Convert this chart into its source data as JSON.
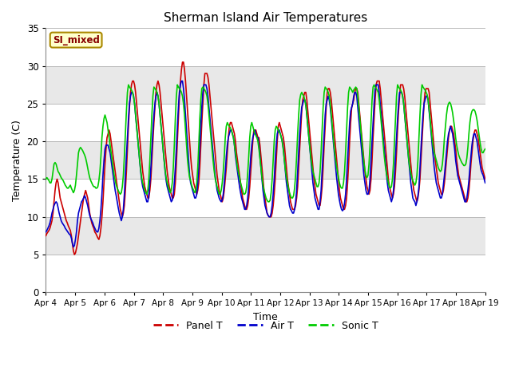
{
  "title": "Sherman Island Air Temperatures",
  "xlabel": "Time",
  "ylabel": "Temperature (C)",
  "ylim": [
    0,
    35
  ],
  "yticks": [
    0,
    5,
    10,
    15,
    20,
    25,
    30,
    35
  ],
  "date_labels": [
    "Apr 4",
    "Apr 5",
    "Apr 6",
    "Apr 7",
    "Apr 8",
    "Apr 9",
    "Apr 10",
    "Apr 11",
    "Apr 12",
    "Apr 13",
    "Apr 14",
    "Apr 15",
    "Apr 16",
    "Apr 17",
    "Apr 18",
    "Apr 19"
  ],
  "site_label": "SI_mixed",
  "panel_color": "#cc0000",
  "air_color": "#0000cc",
  "sonic_color": "#00cc00",
  "bg_color": "#d8d8d8",
  "band_color_light": "#e8e8e8",
  "band_color_dark": "#d0d0d0",
  "legend_entries": [
    "Panel T",
    "Air T",
    "Sonic T"
  ],
  "panel_T": [
    7.5,
    7.8,
    8.0,
    8.2,
    8.5,
    9.0,
    9.5,
    10.5,
    12.0,
    13.5,
    14.5,
    15.0,
    14.5,
    13.5,
    12.5,
    12.0,
    11.5,
    11.0,
    10.5,
    10.0,
    9.5,
    9.2,
    8.8,
    8.5,
    8.2,
    7.5,
    6.5,
    5.5,
    5.0,
    5.2,
    5.8,
    6.5,
    7.5,
    8.5,
    9.5,
    10.5,
    11.5,
    12.5,
    13.0,
    13.5,
    13.0,
    12.5,
    11.5,
    10.5,
    9.8,
    9.2,
    8.8,
    8.5,
    8.0,
    7.8,
    7.5,
    7.2,
    7.0,
    7.5,
    8.5,
    10.0,
    12.0,
    14.5,
    17.0,
    19.0,
    20.5,
    21.0,
    21.5,
    21.0,
    20.0,
    19.0,
    18.0,
    17.0,
    16.0,
    15.0,
    14.0,
    13.0,
    12.0,
    11.0,
    10.5,
    10.0,
    10.5,
    11.5,
    13.5,
    16.0,
    19.0,
    22.0,
    24.5,
    26.5,
    27.5,
    28.0,
    28.0,
    27.5,
    26.5,
    25.0,
    23.5,
    22.0,
    20.5,
    19.0,
    17.5,
    16.0,
    15.0,
    14.0,
    13.5,
    13.0,
    12.5,
    12.5,
    13.5,
    15.0,
    17.5,
    20.0,
    22.5,
    24.5,
    26.5,
    27.5,
    28.0,
    27.5,
    26.5,
    25.0,
    23.5,
    22.0,
    20.5,
    19.0,
    17.5,
    16.0,
    15.0,
    14.0,
    13.5,
    13.0,
    12.5,
    12.5,
    13.0,
    14.5,
    17.0,
    20.0,
    23.0,
    26.0,
    28.0,
    29.5,
    30.5,
    30.5,
    29.5,
    28.0,
    26.0,
    24.0,
    22.0,
    20.0,
    18.0,
    16.5,
    15.5,
    14.5,
    14.0,
    13.5,
    13.0,
    13.5,
    14.5,
    16.5,
    19.5,
    22.5,
    25.0,
    27.5,
    29.0,
    29.0,
    29.0,
    28.5,
    27.5,
    26.0,
    24.5,
    23.0,
    21.5,
    20.0,
    18.5,
    17.0,
    15.5,
    14.5,
    13.5,
    13.0,
    12.5,
    12.0,
    12.5,
    13.5,
    15.0,
    16.5,
    18.5,
    20.5,
    22.0,
    22.5,
    22.5,
    22.0,
    21.5,
    21.0,
    20.0,
    18.5,
    17.5,
    16.5,
    15.5,
    14.5,
    13.5,
    12.5,
    12.0,
    11.5,
    11.0,
    11.0,
    11.5,
    12.5,
    14.0,
    16.0,
    18.0,
    20.0,
    21.5,
    21.5,
    21.5,
    21.0,
    20.5,
    20.5,
    19.5,
    18.0,
    16.5,
    15.0,
    13.5,
    12.5,
    11.5,
    10.5,
    10.2,
    10.0,
    10.0,
    10.0,
    10.5,
    11.5,
    13.0,
    15.0,
    17.5,
    20.0,
    22.0,
    22.5,
    22.0,
    21.5,
    21.0,
    20.5,
    19.5,
    18.0,
    16.5,
    15.0,
    14.0,
    13.0,
    12.0,
    11.5,
    11.0,
    11.0,
    11.0,
    11.5,
    12.5,
    14.0,
    16.5,
    19.0,
    21.5,
    24.0,
    25.5,
    26.0,
    26.5,
    26.5,
    25.5,
    24.0,
    22.5,
    21.0,
    19.5,
    18.0,
    16.5,
    15.0,
    14.0,
    13.0,
    12.5,
    12.0,
    11.5,
    11.5,
    12.5,
    14.0,
    16.5,
    19.5,
    22.0,
    24.5,
    26.5,
    27.0,
    27.0,
    26.5,
    25.5,
    24.0,
    22.5,
    21.0,
    19.5,
    18.0,
    16.5,
    15.0,
    13.5,
    12.5,
    12.0,
    11.5,
    11.0,
    11.0,
    11.5,
    12.5,
    14.5,
    17.0,
    20.0,
    22.5,
    24.5,
    25.0,
    25.5,
    26.5,
    27.0,
    27.0,
    26.5,
    25.0,
    23.5,
    22.0,
    20.5,
    19.0,
    17.5,
    16.0,
    15.0,
    14.0,
    13.5,
    13.0,
    13.5,
    15.0,
    17.5,
    20.5,
    23.0,
    25.5,
    27.5,
    28.0,
    28.0,
    28.0,
    27.0,
    25.5,
    24.0,
    22.5,
    21.0,
    19.5,
    18.0,
    16.5,
    15.0,
    14.0,
    13.5,
    13.0,
    12.5,
    13.0,
    14.0,
    16.0,
    18.5,
    21.5,
    24.0,
    26.0,
    27.5,
    27.5,
    27.5,
    27.0,
    26.0,
    24.5,
    23.0,
    21.5,
    20.0,
    18.5,
    17.0,
    15.5,
    14.5,
    13.5,
    13.0,
    12.5,
    12.0,
    12.5,
    13.5,
    15.0,
    17.5,
    20.0,
    22.5,
    25.0,
    26.5,
    27.0,
    27.0,
    27.0,
    26.5,
    25.0,
    23.5,
    22.0,
    20.5,
    19.0,
    17.5,
    16.5,
    15.5,
    14.5,
    14.0,
    13.5,
    13.0,
    13.0,
    13.5,
    14.5,
    16.0,
    17.5,
    19.0,
    20.5,
    21.5,
    22.0,
    22.0,
    21.5,
    21.0,
    20.0,
    19.0,
    17.5,
    16.5,
    15.5,
    15.0,
    14.5,
    14.0,
    13.5,
    13.0,
    12.5,
    12.0,
    12.0,
    12.5,
    13.5,
    15.0,
    17.0,
    18.5,
    20.0,
    21.0,
    21.5,
    21.5,
    21.0,
    20.5,
    19.5,
    18.5,
    17.5,
    16.5,
    16.0,
    15.5,
    15.0
  ],
  "air_T": [
    8.0,
    8.2,
    8.5,
    8.8,
    9.2,
    9.8,
    10.5,
    11.0,
    11.5,
    11.8,
    12.0,
    11.8,
    11.2,
    10.5,
    10.0,
    9.5,
    9.2,
    9.0,
    8.8,
    8.5,
    8.3,
    8.1,
    7.9,
    7.7,
    7.6,
    7.2,
    6.5,
    6.0,
    6.2,
    7.0,
    8.0,
    9.5,
    10.5,
    11.0,
    11.5,
    12.0,
    12.2,
    12.5,
    12.8,
    12.5,
    12.0,
    11.5,
    10.8,
    10.2,
    9.8,
    9.5,
    9.2,
    8.8,
    8.5,
    8.2,
    8.0,
    8.0,
    8.5,
    9.5,
    11.0,
    13.0,
    15.5,
    17.5,
    19.0,
    19.5,
    19.5,
    19.5,
    19.0,
    18.5,
    17.5,
    16.5,
    15.5,
    14.5,
    13.5,
    12.8,
    12.0,
    11.2,
    10.5,
    10.0,
    9.5,
    10.0,
    11.0,
    13.0,
    15.5,
    18.0,
    20.5,
    23.0,
    25.0,
    26.0,
    26.5,
    26.5,
    26.0,
    25.0,
    23.5,
    22.0,
    20.5,
    19.0,
    17.5,
    16.0,
    14.8,
    14.0,
    13.5,
    13.0,
    12.5,
    12.0,
    12.0,
    13.0,
    14.5,
    16.5,
    19.0,
    21.5,
    23.5,
    25.0,
    26.0,
    26.5,
    26.0,
    25.0,
    23.5,
    22.0,
    20.5,
    19.0,
    17.5,
    16.0,
    14.8,
    14.0,
    13.5,
    13.0,
    12.5,
    12.0,
    12.2,
    13.0,
    14.5,
    16.5,
    19.0,
    22.0,
    24.5,
    26.5,
    27.5,
    28.0,
    28.0,
    27.0,
    25.5,
    23.5,
    21.5,
    19.5,
    17.5,
    15.5,
    14.5,
    14.0,
    13.5,
    13.0,
    12.5,
    12.5,
    13.0,
    14.5,
    16.5,
    19.5,
    22.0,
    24.5,
    26.5,
    27.5,
    27.5,
    27.5,
    27.0,
    26.0,
    24.5,
    23.0,
    21.5,
    20.0,
    18.5,
    17.0,
    15.5,
    14.5,
    13.5,
    13.0,
    12.5,
    12.2,
    12.0,
    12.2,
    13.0,
    14.5,
    16.0,
    18.0,
    19.5,
    20.5,
    21.0,
    21.5,
    21.5,
    21.0,
    20.5,
    19.5,
    18.0,
    17.0,
    16.0,
    15.0,
    14.0,
    13.2,
    12.5,
    12.0,
    11.5,
    11.0,
    11.0,
    11.5,
    12.5,
    14.0,
    16.0,
    18.0,
    19.5,
    20.5,
    21.0,
    21.5,
    21.0,
    20.5,
    20.5,
    19.5,
    18.0,
    16.5,
    15.0,
    13.5,
    12.5,
    11.5,
    11.0,
    10.5,
    10.2,
    10.0,
    10.0,
    10.5,
    11.5,
    13.0,
    15.0,
    17.5,
    19.5,
    21.0,
    21.5,
    21.5,
    21.0,
    20.5,
    20.0,
    19.0,
    17.5,
    16.0,
    14.5,
    13.5,
    12.5,
    11.5,
    11.0,
    10.8,
    10.5,
    10.5,
    11.0,
    12.0,
    13.5,
    16.0,
    18.5,
    21.0,
    23.0,
    24.5,
    25.0,
    25.5,
    25.5,
    25.0,
    23.5,
    22.0,
    20.5,
    19.0,
    17.5,
    16.0,
    14.5,
    13.5,
    12.5,
    12.0,
    11.5,
    11.0,
    11.0,
    12.0,
    13.5,
    16.0,
    18.5,
    21.0,
    23.5,
    25.0,
    25.5,
    26.0,
    25.5,
    24.5,
    23.0,
    21.5,
    20.0,
    18.5,
    17.0,
    15.5,
    14.2,
    13.0,
    12.2,
    11.5,
    11.0,
    10.8,
    11.0,
    11.8,
    13.0,
    15.0,
    17.5,
    20.0,
    22.5,
    24.0,
    24.5,
    25.0,
    26.0,
    26.5,
    26.5,
    26.0,
    24.5,
    23.0,
    21.5,
    20.0,
    18.5,
    17.0,
    15.5,
    14.5,
    13.5,
    13.0,
    13.0,
    13.5,
    15.0,
    17.5,
    20.0,
    22.5,
    25.0,
    27.0,
    27.5,
    27.5,
    27.5,
    26.5,
    25.0,
    23.5,
    22.0,
    20.5,
    19.0,
    17.5,
    16.0,
    14.5,
    13.5,
    13.0,
    12.5,
    12.0,
    12.5,
    13.5,
    15.5,
    18.0,
    20.5,
    23.0,
    25.0,
    26.5,
    26.5,
    26.5,
    26.0,
    25.0,
    23.5,
    22.0,
    20.5,
    19.0,
    17.5,
    16.0,
    14.5,
    13.5,
    12.5,
    12.2,
    12.0,
    11.5,
    12.0,
    12.8,
    14.0,
    16.5,
    19.0,
    21.5,
    23.5,
    25.0,
    25.5,
    26.0,
    26.0,
    25.5,
    24.0,
    22.5,
    21.0,
    19.5,
    18.0,
    16.5,
    15.5,
    14.5,
    14.0,
    13.5,
    13.0,
    12.5,
    12.5,
    13.0,
    14.2,
    15.5,
    17.0,
    18.5,
    20.0,
    21.0,
    21.5,
    22.0,
    21.5,
    21.0,
    20.0,
    19.0,
    17.5,
    16.5,
    15.5,
    15.0,
    14.5,
    14.0,
    13.5,
    13.0,
    12.5,
    12.0,
    12.0,
    12.5,
    13.5,
    14.8,
    16.5,
    18.0,
    19.5,
    20.5,
    21.0,
    21.0,
    20.5,
    20.0,
    19.0,
    18.0,
    17.0,
    16.2,
    15.8,
    15.5,
    15.0,
    14.5
  ],
  "sonic_T": [
    15.0,
    15.2,
    15.0,
    14.8,
    14.5,
    14.5,
    15.0,
    16.0,
    17.0,
    17.2,
    17.0,
    16.5,
    16.0,
    15.8,
    15.5,
    15.2,
    15.0,
    14.8,
    14.5,
    14.2,
    14.0,
    13.8,
    13.8,
    14.0,
    14.2,
    13.8,
    13.5,
    13.2,
    13.5,
    14.2,
    15.5,
    17.0,
    18.5,
    19.0,
    19.2,
    19.0,
    18.8,
    18.5,
    18.2,
    17.8,
    17.2,
    16.5,
    15.8,
    15.2,
    14.8,
    14.5,
    14.2,
    14.0,
    14.0,
    13.8,
    13.8,
    14.0,
    14.8,
    16.0,
    18.0,
    20.5,
    22.0,
    23.0,
    23.5,
    23.0,
    22.5,
    21.5,
    20.5,
    19.5,
    18.5,
    17.5,
    16.5,
    15.5,
    14.8,
    14.2,
    13.8,
    13.5,
    13.2,
    13.0,
    13.2,
    14.0,
    15.5,
    18.0,
    21.0,
    24.0,
    26.5,
    27.5,
    27.2,
    27.0,
    26.8,
    26.5,
    26.0,
    25.0,
    23.5,
    22.0,
    20.5,
    19.0,
    17.5,
    16.2,
    15.2,
    14.5,
    14.0,
    13.5,
    13.2,
    13.0,
    13.5,
    15.0,
    17.5,
    20.5,
    23.5,
    26.0,
    27.2,
    27.0,
    26.8,
    26.5,
    26.0,
    25.0,
    23.5,
    22.0,
    20.5,
    19.0,
    17.5,
    16.2,
    15.2,
    14.5,
    14.0,
    13.5,
    13.2,
    13.5,
    14.5,
    16.5,
    19.5,
    23.0,
    26.0,
    27.5,
    27.2,
    27.0,
    26.8,
    26.5,
    26.0,
    25.0,
    23.5,
    21.5,
    19.5,
    17.5,
    16.2,
    15.2,
    14.8,
    14.2,
    13.8,
    13.5,
    13.2,
    13.5,
    14.5,
    16.5,
    19.5,
    23.0,
    25.5,
    27.0,
    27.2,
    27.0,
    26.8,
    26.5,
    26.0,
    25.0,
    23.5,
    22.0,
    20.5,
    19.0,
    17.5,
    16.2,
    15.2,
    14.5,
    14.0,
    13.5,
    13.0,
    13.0,
    13.5,
    14.5,
    16.0,
    18.0,
    20.5,
    22.0,
    22.5,
    22.2,
    22.0,
    21.8,
    21.5,
    21.0,
    20.5,
    19.5,
    18.5,
    17.5,
    16.5,
    15.8,
    15.2,
    14.5,
    14.0,
    13.5,
    13.0,
    13.0,
    13.2,
    14.0,
    15.8,
    18.0,
    20.5,
    22.0,
    22.5,
    22.0,
    21.5,
    21.0,
    20.8,
    20.5,
    20.0,
    19.0,
    17.8,
    16.5,
    15.2,
    14.2,
    13.5,
    13.0,
    12.5,
    12.2,
    12.0,
    12.0,
    12.2,
    13.2,
    15.0,
    17.5,
    20.0,
    21.5,
    22.0,
    21.8,
    21.5,
    21.2,
    21.0,
    20.5,
    19.8,
    18.8,
    17.5,
    16.2,
    15.2,
    14.5,
    13.8,
    13.2,
    12.8,
    12.5,
    12.5,
    12.8,
    13.8,
    15.5,
    18.0,
    21.0,
    23.5,
    25.5,
    26.2,
    26.5,
    26.2,
    26.0,
    25.5,
    24.8,
    23.5,
    22.0,
    20.5,
    19.2,
    17.8,
    16.8,
    16.0,
    15.5,
    15.0,
    14.5,
    14.0,
    14.0,
    14.5,
    16.0,
    18.5,
    21.5,
    24.5,
    26.5,
    27.2,
    27.0,
    26.8,
    26.5,
    26.0,
    25.0,
    23.5,
    22.0,
    20.5,
    19.0,
    17.8,
    16.8,
    16.0,
    15.2,
    14.5,
    14.0,
    13.8,
    13.8,
    14.5,
    16.0,
    18.5,
    21.5,
    24.5,
    26.5,
    27.2,
    27.0,
    26.8,
    26.5,
    26.8,
    27.0,
    27.2,
    27.0,
    26.0,
    24.5,
    23.0,
    21.5,
    20.0,
    18.5,
    17.2,
    16.2,
    15.5,
    15.2,
    15.5,
    17.0,
    19.5,
    22.5,
    25.5,
    27.2,
    27.5,
    27.2,
    27.0,
    26.8,
    26.5,
    25.5,
    24.0,
    22.5,
    21.0,
    19.5,
    18.0,
    16.8,
    15.8,
    15.2,
    14.5,
    14.0,
    13.8,
    14.0,
    15.0,
    17.0,
    20.0,
    23.0,
    26.0,
    27.5,
    27.2,
    27.0,
    26.8,
    26.5,
    26.0,
    25.0,
    23.5,
    22.0,
    20.5,
    19.0,
    17.5,
    16.5,
    15.8,
    15.2,
    14.8,
    14.5,
    14.2,
    14.5,
    15.5,
    17.5,
    20.5,
    23.5,
    26.2,
    27.5,
    27.2,
    27.0,
    26.8,
    26.5,
    26.2,
    25.5,
    24.2,
    23.0,
    21.5,
    20.2,
    19.2,
    18.5,
    18.0,
    17.5,
    17.0,
    16.5,
    16.2,
    16.0,
    16.2,
    17.0,
    18.5,
    20.5,
    22.0,
    23.5,
    24.5,
    25.0,
    25.2,
    25.0,
    24.5,
    23.8,
    22.8,
    21.8,
    20.5,
    19.5,
    18.8,
    18.2,
    17.8,
    17.5,
    17.2,
    17.0,
    16.8,
    16.8,
    17.0,
    17.8,
    19.2,
    21.0,
    22.5,
    23.5,
    24.0,
    24.2,
    24.2,
    24.0,
    23.5,
    22.8,
    21.8,
    20.8,
    19.8,
    19.0,
    18.5,
    18.5,
    18.8,
    19.0
  ]
}
